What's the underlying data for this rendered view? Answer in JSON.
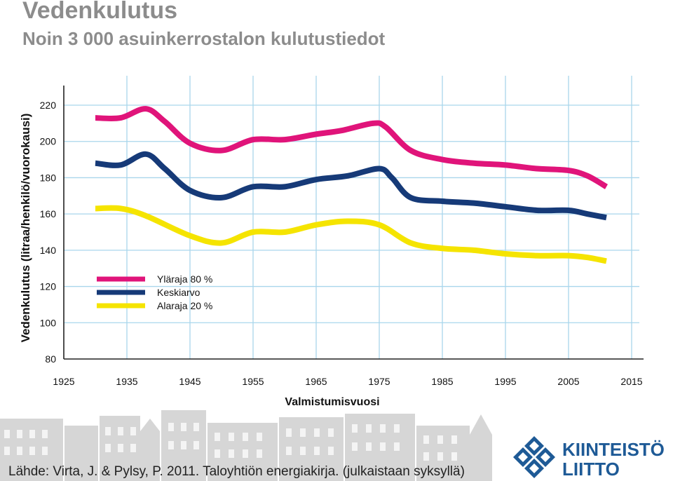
{
  "header": {
    "title": "Vedenkulutus",
    "subtitle": "Noin 3 000 asuinkerrostalon kulutustiedot"
  },
  "footer": {
    "source": "Lähde: Virta, J. & Pylsy, P. 2011. Taloyhtiön energiakirja. (julkaistaan syksyllä)"
  },
  "logo": {
    "line1": "KIINTEISTÖ",
    "line2": "LIITTO",
    "color": "#1e5a96"
  },
  "chart_data": {
    "type": "line",
    "title": "",
    "xlabel": "Valmistumisvuosi",
    "ylabel": "Vedenkulutus (litraa/henkilö/vuorokausi)",
    "xlim": [
      1925,
      2015
    ],
    "ylim": [
      80,
      220
    ],
    "x_ticks": [
      1925,
      1935,
      1945,
      1955,
      1965,
      1975,
      1985,
      1995,
      2005,
      2015
    ],
    "y_ticks": [
      80,
      100,
      120,
      140,
      160,
      180,
      200,
      220
    ],
    "grid": "vertical",
    "legend": "left",
    "series": [
      {
        "name": "Yläraja 80 %",
        "color": "#e0147a",
        "x": [
          1930,
          1934,
          1938,
          1941,
          1945,
          1950,
          1955,
          1960,
          1965,
          1969,
          1974,
          1976,
          1980,
          1985,
          1990,
          1995,
          2000,
          2005,
          2008,
          2011
        ],
        "y": [
          213,
          213,
          218,
          211,
          199,
          195,
          201,
          201,
          204,
          206,
          210,
          208,
          195,
          190,
          188,
          187,
          185,
          184,
          181,
          175
        ]
      },
      {
        "name": "Keskiarvo",
        "color": "#163a78",
        "x": [
          1930,
          1934,
          1938,
          1941,
          1945,
          1950,
          1955,
          1960,
          1965,
          1970,
          1975,
          1977,
          1980,
          1985,
          1990,
          1995,
          2000,
          2005,
          2008,
          2011
        ],
        "y": [
          188,
          187,
          193,
          185,
          173,
          169,
          175,
          175,
          179,
          181,
          185,
          180,
          169,
          167,
          166,
          164,
          162,
          162,
          160,
          158
        ]
      },
      {
        "name": "Alaraja 20 %",
        "color": "#f5e400",
        "x": [
          1930,
          1934,
          1938,
          1945,
          1950,
          1955,
          1960,
          1965,
          1970,
          1975,
          1980,
          1985,
          1990,
          1995,
          2000,
          2005,
          2008,
          2011
        ],
        "y": [
          163,
          163,
          159,
          148,
          144,
          150,
          150,
          154,
          156,
          154,
          144,
          141,
          140,
          138,
          137,
          137,
          136,
          134
        ]
      }
    ]
  }
}
